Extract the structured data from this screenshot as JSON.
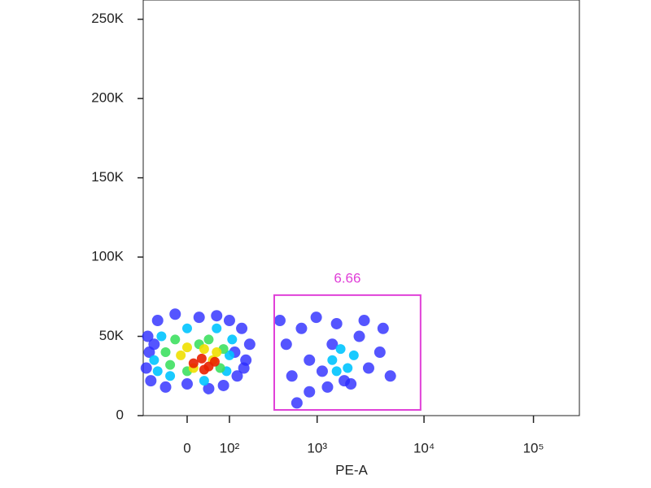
{
  "chart_data": {
    "type": "scatter",
    "x_label": "PE-A",
    "xscale": "biexponential",
    "xlim": [
      -100,
      262144
    ],
    "xticks": [
      0,
      {
        "value": 100,
        "label": "10²"
      },
      {
        "value": 1000,
        "label": "10³"
      },
      {
        "value": 10000,
        "label": "10⁴"
      },
      {
        "value": 100000,
        "label": "10⁵"
      }
    ],
    "ylim": [
      0,
      262144
    ],
    "yticks": [
      0,
      {
        "value": 50000,
        "label": "50K"
      },
      {
        "value": 100000,
        "label": "100K"
      },
      {
        "value": 150000,
        "label": "150K"
      },
      {
        "value": 200000,
        "label": "200K"
      },
      {
        "value": 250000,
        "label": "250K"
      }
    ],
    "gate": {
      "label": "6.66",
      "color": "#e040d8",
      "x": [
        365,
        9300
      ],
      "y": [
        3600,
        76000
      ]
    },
    "series": [
      {
        "color": "#2a2aff",
        "x": [
          -95,
          -90,
          -80,
          -60,
          -40,
          -20,
          0,
          20,
          40,
          60,
          80,
          100,
          130,
          150,
          170,
          190,
          -85,
          120,
          -70,
          160,
          420,
          490,
          560,
          700,
          840,
          980,
          1260,
          1540,
          2100,
          2520,
          3080,
          3920,
          4900,
          840,
          1400,
          2800,
          630,
          4200,
          1120,
          1820
        ],
        "y": [
          30000,
          50000,
          22000,
          60000,
          18000,
          64000,
          20000,
          62000,
          17000,
          63000,
          19000,
          60000,
          25000,
          55000,
          35000,
          45000,
          40000,
          40000,
          45000,
          30000,
          60000,
          45000,
          25000,
          55000,
          15000,
          62000,
          18000,
          58000,
          20000,
          50000,
          30000,
          40000,
          25000,
          35000,
          45000,
          60000,
          8000,
          55000,
          28000,
          22000
        ]
      },
      {
        "color": "#00c4ff",
        "x": [
          -70,
          -50,
          -30,
          0,
          30,
          60,
          90,
          110,
          -60,
          100,
          1400,
          1680,
          1960,
          2240,
          1540
        ],
        "y": [
          35000,
          50000,
          25000,
          55000,
          22000,
          55000,
          28000,
          48000,
          28000,
          38000,
          35000,
          42000,
          30000,
          38000,
          28000
        ]
      },
      {
        "color": "#3ee060",
        "x": [
          -40,
          -20,
          0,
          40,
          70,
          80,
          -30,
          20
        ],
        "y": [
          40000,
          48000,
          28000,
          48000,
          30000,
          42000,
          32000,
          45000
        ]
      },
      {
        "color": "#f0e000",
        "x": [
          -10,
          10,
          30,
          50,
          60,
          0
        ],
        "y": [
          38000,
          30000,
          42000,
          35000,
          40000,
          43000
        ]
      },
      {
        "color": "#e82000",
        "x": [
          10,
          25,
          40,
          55,
          30
        ],
        "y": [
          33000,
          36000,
          31000,
          34000,
          29000
        ]
      }
    ]
  }
}
